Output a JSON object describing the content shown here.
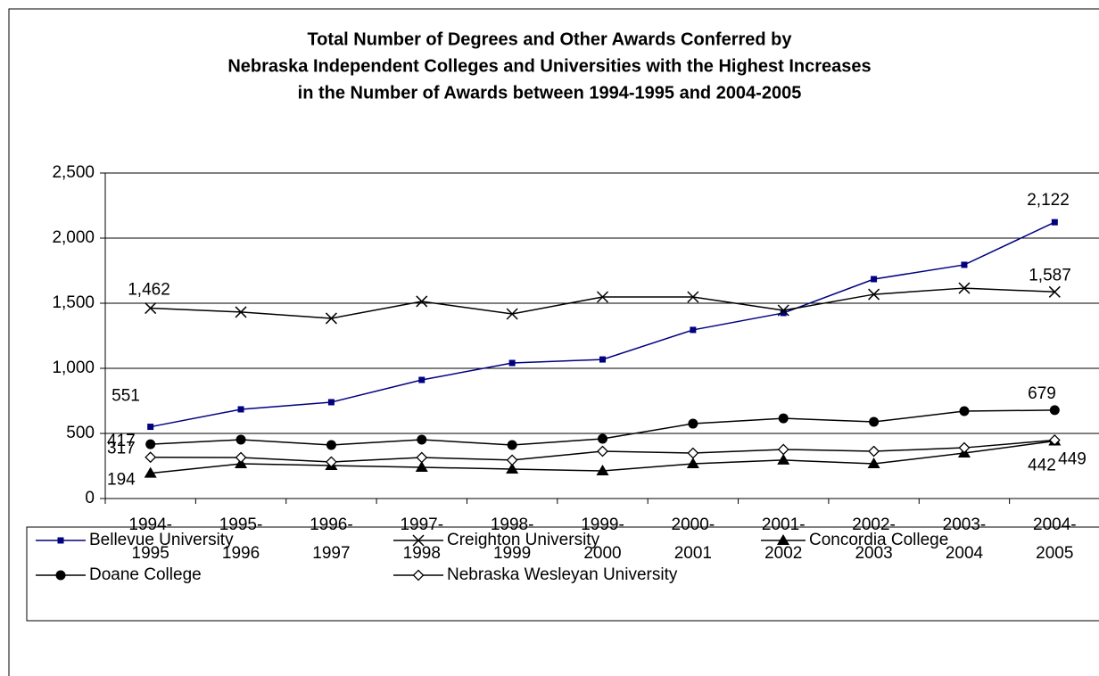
{
  "chart_data": {
    "type": "line",
    "title": [
      "Total Number of Degrees and Other Awards Conferred by",
      "Nebraska Independent Colleges and Universities with the Highest Increases",
      "in the Number of Awards between 1994-1995 and 2004-2005"
    ],
    "categories": [
      "1994-1995",
      "1995-1996",
      "1996-1997",
      "1997-1998",
      "1998-1999",
      "1999-2000",
      "2000-2001",
      "2001-2002",
      "2002-2003",
      "2003-2004",
      "2004-2005"
    ],
    "ylim": [
      0,
      2500
    ],
    "yticks": [
      0,
      500,
      {
        "value": 1000,
        "label": "1,000"
      },
      {
        "value": 1500,
        "label": "1,500"
      },
      {
        "value": 2000,
        "label": "2,000"
      },
      {
        "value": 2500,
        "label": "2,500"
      }
    ],
    "grid": true,
    "legend": "bottom",
    "series": [
      {
        "name": "Bellevue University",
        "color": "#000080",
        "marker": "square",
        "values": [
          551,
          685,
          740,
          911,
          1041,
          1068,
          1295,
          1425,
          1685,
          1795,
          2122
        ],
        "value_labels": [
          "551",
          null,
          null,
          null,
          null,
          null,
          null,
          null,
          null,
          null,
          "2,122"
        ]
      },
      {
        "name": "Creighton University",
        "color": "#000000",
        "marker": "x",
        "values": [
          1462,
          1432,
          1384,
          1514,
          1418,
          1548,
          1548,
          1445,
          1568,
          1616,
          1587
        ],
        "value_labels": [
          "1,462",
          null,
          null,
          null,
          null,
          null,
          null,
          null,
          null,
          null,
          "1,587"
        ]
      },
      {
        "name": "Concordia College",
        "color": "#000000",
        "marker": "triangle",
        "values": [
          194,
          267,
          253,
          240,
          226,
          212,
          267,
          295,
          267,
          349,
          442
        ],
        "value_labels": [
          "194",
          null,
          null,
          null,
          null,
          null,
          null,
          null,
          null,
          null,
          "442"
        ]
      },
      {
        "name": "Doane College",
        "color": "#000000",
        "marker": "circle",
        "values": [
          417,
          452,
          411,
          452,
          411,
          459,
          575,
          616,
          589,
          671,
          679
        ],
        "value_labels": [
          "417",
          null,
          null,
          null,
          null,
          null,
          null,
          null,
          null,
          null,
          "679"
        ]
      },
      {
        "name": "Nebraska Wesleyan University",
        "color": "#000000",
        "marker": "diamond",
        "values": [
          317,
          315,
          281,
          315,
          295,
          363,
          349,
          377,
          363,
          390,
          449
        ],
        "value_labels": [
          "317",
          null,
          null,
          null,
          null,
          null,
          null,
          null,
          null,
          null,
          "449"
        ]
      }
    ]
  }
}
